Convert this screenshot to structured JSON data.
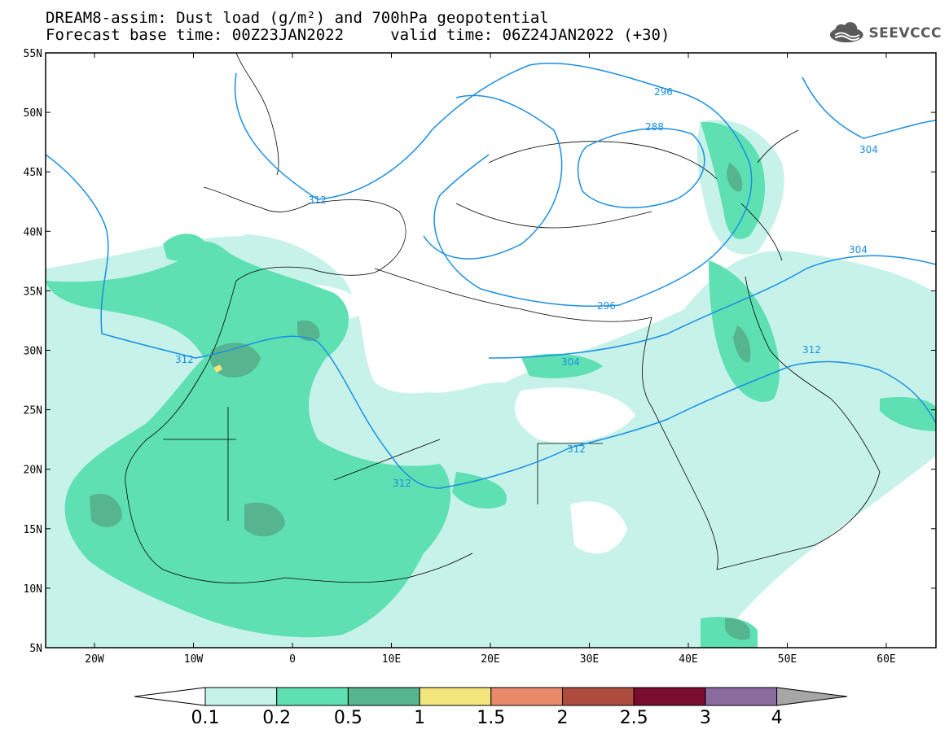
{
  "header": {
    "line1": "DREAM8-assim: Dust load (g/m²) and 700hPa geopotential",
    "line2": "Forecast base time: 00Z23JAN2022     valid time: 06Z24JAN2022 (+30)"
  },
  "logo": {
    "text": "SEEVCCC",
    "icon": "cloud-icon"
  },
  "map": {
    "lat_labels": [
      "55N",
      "50N",
      "45N",
      "40N",
      "35N",
      "30N",
      "25N",
      "20N",
      "15N",
      "10N",
      "5N"
    ],
    "lon_labels": [
      "20W",
      "10W",
      "0",
      "10E",
      "20E",
      "30E",
      "40E",
      "50E",
      "60E"
    ],
    "contour_labels": [
      "296",
      "288",
      "304",
      "312",
      "304",
      "296",
      "304",
      "312",
      "312",
      "312",
      "312"
    ]
  },
  "legend": {
    "colors": [
      "#ffffff",
      "#c6f2ea",
      "#5ee0b3",
      "#56b48e",
      "#f2e57c",
      "#e8896a",
      "#ad4b3f",
      "#7a0c2e",
      "#8b6b9e",
      "#a6a6a6"
    ],
    "labels": [
      "0.1",
      "0.2",
      "0.5",
      "1",
      "1.5",
      "2",
      "2.5",
      "3",
      "4"
    ]
  },
  "colors": {
    "contour": "#1a8fe3",
    "dust_01": "#c6f2ea",
    "dust_02": "#5ee0b3",
    "dust_05": "#56b48e",
    "dust_1": "#f2e57c"
  }
}
